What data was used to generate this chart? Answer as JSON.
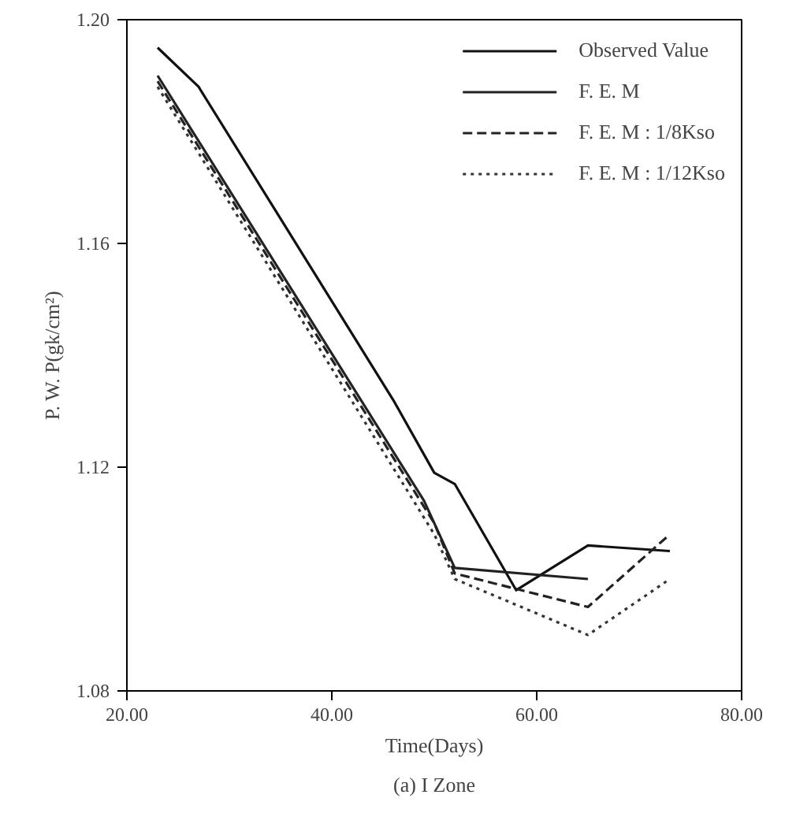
{
  "chart_data": {
    "type": "line",
    "xlabel": "Time(Days)",
    "ylabel": "P. W. P(gk/cm²)",
    "xlim": [
      20,
      80
    ],
    "ylim": [
      1.08,
      1.2
    ],
    "xticks": [
      {
        "value": 20,
        "label": "20.00"
      },
      {
        "value": 40,
        "label": "40.00"
      },
      {
        "value": 60,
        "label": "60.00"
      },
      {
        "value": 80,
        "label": "80.00"
      }
    ],
    "yticks": [
      {
        "value": 1.08,
        "label": "1.08"
      },
      {
        "value": 1.12,
        "label": "1.12"
      },
      {
        "value": 1.16,
        "label": "1.16"
      },
      {
        "value": 1.2,
        "label": "1.20"
      }
    ],
    "grid": false,
    "legend": "top right",
    "marker": "none",
    "series": [
      {
        "name": "Observed Value",
        "color": "#111111",
        "line_style": "solid",
        "x": [
          23,
          27,
          46,
          50,
          52,
          58,
          65,
          73
        ],
        "values": [
          1.195,
          1.188,
          1.132,
          1.119,
          1.117,
          1.098,
          1.106,
          1.105
        ]
      },
      {
        "name": "F. E. M",
        "color": "#222222",
        "line_style": "solid",
        "x": [
          23,
          49,
          52,
          65
        ],
        "values": [
          1.19,
          1.114,
          1.102,
          1.1
        ]
      },
      {
        "name": "F. E. M : 1/8Kso",
        "color": "#222222",
        "line_style": "dashed",
        "x": [
          23,
          50,
          52,
          65,
          73
        ],
        "values": [
          1.189,
          1.11,
          1.101,
          1.095,
          1.108
        ]
      },
      {
        "name": "F. E. M : 1/12Kso",
        "color": "#333333",
        "line_style": "dotted",
        "x": [
          23,
          50,
          52,
          65,
          73
        ],
        "values": [
          1.188,
          1.108,
          1.1,
          1.09,
          1.1
        ]
      }
    ],
    "annotations": [
      "(a) I Zone"
    ]
  }
}
